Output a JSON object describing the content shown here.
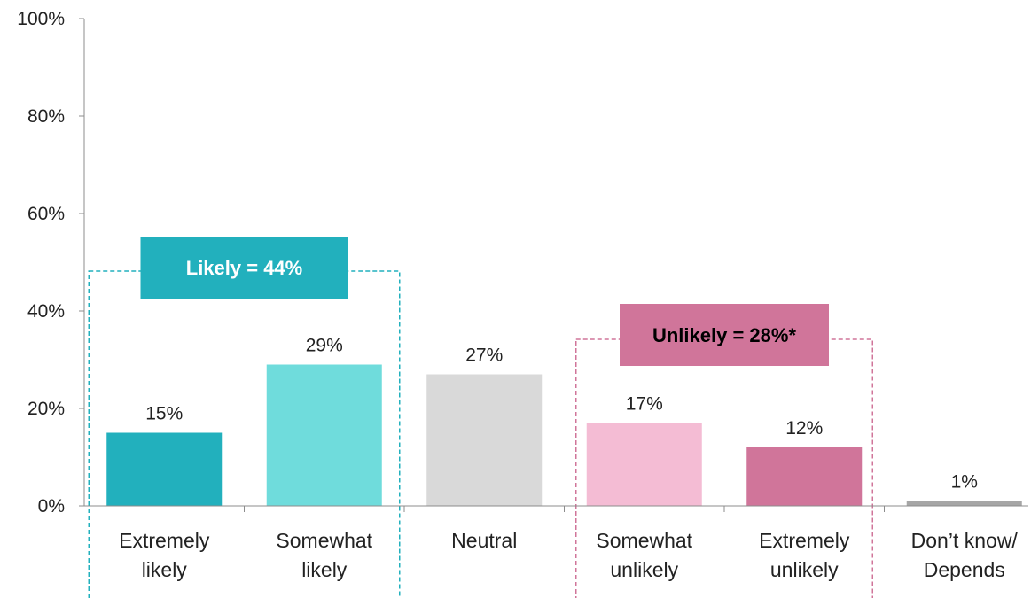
{
  "chart_data": {
    "type": "bar",
    "title": "",
    "xlabel": "",
    "ylabel": "",
    "ylim": [
      0,
      100
    ],
    "yticks": [
      "0%",
      "20%",
      "40%",
      "60%",
      "80%",
      "100%"
    ],
    "ytick_values": [
      0,
      20,
      40,
      60,
      80,
      100
    ],
    "grid": false,
    "categories": [
      [
        "Extremely",
        "likely"
      ],
      [
        "Somewhat",
        "likely"
      ],
      [
        "Neutral"
      ],
      [
        "Somewhat",
        "unlikely"
      ],
      [
        "Extremely",
        "unlikely"
      ],
      [
        "Don’t know/",
        "Depends"
      ]
    ],
    "values": [
      15,
      29,
      27,
      17,
      12,
      1
    ],
    "value_labels": [
      "15%",
      "29%",
      "27%",
      "17%",
      "12%",
      "1%"
    ],
    "colors": [
      "#22b0bd",
      "#6fdcdc",
      "#d9d9d9",
      "#f4bcd4",
      "#d0759a",
      "#a6a6a6"
    ],
    "annotations": [
      {
        "label": "Likely = 44%",
        "categories": [
          0,
          1
        ],
        "color": "#22b0bd",
        "text_color": "#ffffff"
      },
      {
        "label": "Unlikely = 28%*",
        "categories": [
          3,
          4
        ],
        "color": "#d0759a",
        "text_color": "#000000"
      }
    ]
  }
}
